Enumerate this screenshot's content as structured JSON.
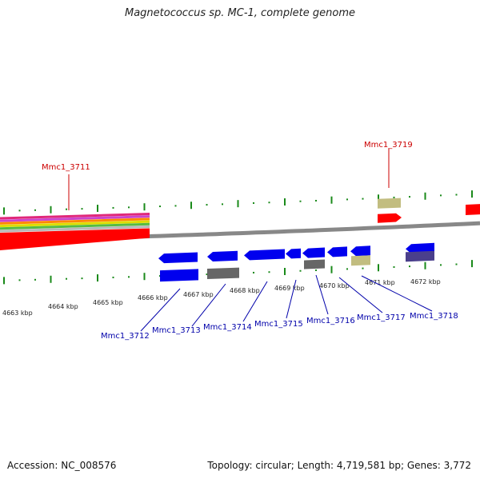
{
  "title": "Magnetococcus sp. MC-1, complete genome",
  "footer": {
    "accession": "Accession: NC_008576",
    "summary": "Topology: circular; Length: 4,719,581 bp; Genes: 3,772"
  },
  "colors": {
    "forward_gene": "#ff0000",
    "reverse_gene": "#0000ee",
    "grey_feature": "#666666",
    "khaki_feature": "#c2bd80",
    "purple_feature": "#4a3f8c",
    "backbone": "#888888",
    "tick": "#1a8a1a",
    "label_red": "#cc0000",
    "label_blue": "#0000aa"
  },
  "scale": {
    "tick_labels": [
      "4663 kbp",
      "4664 kbp",
      "4665 kbp",
      "4666 kbp",
      "4667 kbp",
      "4668 kbp",
      "4669 kbp",
      "4670 kbp",
      "4671 kbp",
      "4672 kbp"
    ]
  },
  "gene_labels": {
    "forward": [
      "Mmc1_3711",
      "Mmc1_3719"
    ],
    "reverse": [
      "Mmc1_3712",
      "Mmc1_3713",
      "Mmc1_3714",
      "Mmc1_3715",
      "Mmc1_3716",
      "Mmc1_3717",
      "Mmc1_3718"
    ]
  }
}
